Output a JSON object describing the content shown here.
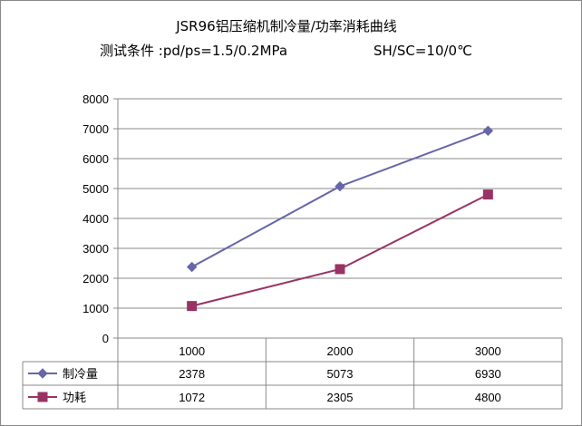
{
  "chart_data": {
    "type": "line",
    "title_line1": "JSR96铝压缩机制冷量/功率消耗曲线",
    "title_line2a": "测试条件 :pd/ps=1.5/0.2MPa",
    "title_line2b": "SH/SC=10/0℃",
    "categories": [
      "1000",
      "2000",
      "3000"
    ],
    "series": [
      {
        "name": "制冷量",
        "values": [
          2378,
          5073,
          6930
        ],
        "color": "#6666aa",
        "marker": "diamond"
      },
      {
        "name": "功耗",
        "values": [
          1072,
          2305,
          4800
        ],
        "color": "#993366",
        "marker": "square"
      }
    ],
    "ylim": [
      0,
      8000
    ],
    "yticks": [
      0,
      1000,
      2000,
      3000,
      4000,
      5000,
      6000,
      7000,
      8000
    ],
    "grid": true,
    "legend": "data-table"
  }
}
